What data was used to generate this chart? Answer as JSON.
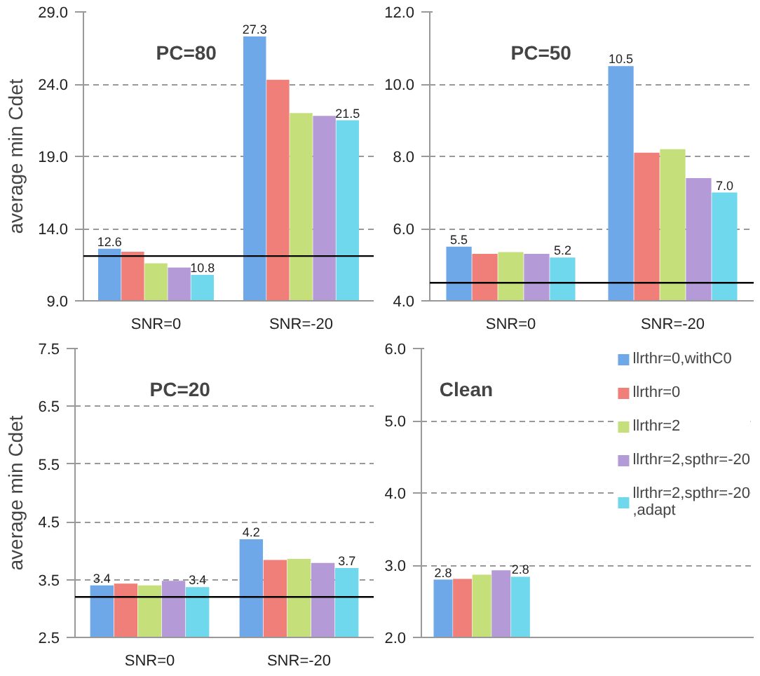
{
  "chart_data": [
    {
      "type": "bar",
      "title": "PC=80",
      "ylabel": "average min Cdet",
      "categories": [
        "SNR=0",
        "SNR=-20"
      ],
      "ylim": [
        9,
        29
      ],
      "yticks": [
        {
          "value": 9,
          "label": "9.0"
        },
        {
          "value": 14,
          "label": "14.0"
        },
        {
          "value": 19,
          "label": "19.0"
        },
        {
          "value": 24,
          "label": "24.0"
        },
        {
          "value": 29,
          "label": "29.0"
        }
      ],
      "grid": "y",
      "ref_lines": [
        {
          "axis": "y",
          "value": 12.1,
          "color": "#000000"
        }
      ],
      "series": [
        {
          "color": "#6fa8e8",
          "values": [
            12.6,
            27.3
          ],
          "value_labels": [
            "12.6",
            "27.3"
          ]
        },
        {
          "color": "#ef7f78",
          "values": [
            12.4,
            24.3
          ]
        },
        {
          "color": "#c5e07a",
          "values": [
            11.6,
            22.0
          ]
        },
        {
          "color": "#b59ad8",
          "values": [
            11.3,
            21.8
          ]
        },
        {
          "color": "#6fd8ec",
          "values": [
            10.8,
            21.5
          ],
          "value_labels": [
            "10.8",
            "21.5"
          ]
        }
      ]
    },
    {
      "type": "bar",
      "title": "PC=50",
      "categories": [
        "SNR=0",
        "SNR=-20"
      ],
      "ylim": [
        4,
        12
      ],
      "yticks": [
        {
          "value": 4,
          "label": "4.0"
        },
        {
          "value": 6,
          "label": "6.0"
        },
        {
          "value": 8,
          "label": "8.0"
        },
        {
          "value": 10,
          "label": "10.0"
        },
        {
          "value": 12,
          "label": "12.0"
        }
      ],
      "grid": "y",
      "ref_lines": [
        {
          "axis": "y",
          "value": 4.5,
          "color": "#000000"
        }
      ],
      "series": [
        {
          "color": "#6fa8e8",
          "values": [
            5.5,
            10.5
          ],
          "value_labels": [
            "5.5",
            "10.5"
          ]
        },
        {
          "color": "#ef7f78",
          "values": [
            5.3,
            8.1
          ]
        },
        {
          "color": "#c5e07a",
          "values": [
            5.35,
            8.2
          ]
        },
        {
          "color": "#b59ad8",
          "values": [
            5.3,
            7.4
          ]
        },
        {
          "color": "#6fd8ec",
          "values": [
            5.2,
            7.0
          ],
          "value_labels": [
            "5.2",
            "7.0"
          ]
        }
      ]
    },
    {
      "type": "bar",
      "title": "PC=20",
      "ylabel": "average min Cdet",
      "categories": [
        "SNR=0",
        "SNR=-20"
      ],
      "ylim": [
        2.5,
        7.5
      ],
      "yticks": [
        2.5,
        3.5,
        4.5,
        5.5,
        6.5,
        7.5
      ],
      "grid": "y",
      "ref_lines": [
        {
          "axis": "y",
          "value": 3.2,
          "color": "#000000"
        }
      ],
      "series": [
        {
          "color": "#6fa8e8",
          "values": [
            3.4,
            4.2
          ],
          "value_labels": [
            "3.4",
            "4.2"
          ]
        },
        {
          "color": "#ef7f78",
          "values": [
            3.43,
            3.84
          ]
        },
        {
          "color": "#c5e07a",
          "values": [
            3.4,
            3.86
          ]
        },
        {
          "color": "#b59ad8",
          "values": [
            3.48,
            3.79
          ]
        },
        {
          "color": "#6fd8ec",
          "values": [
            3.37,
            3.7
          ],
          "value_labels": [
            "3.4",
            "3.7"
          ]
        }
      ]
    },
    {
      "type": "bar",
      "title": "Clean",
      "categories": [
        null
      ],
      "ylim": [
        2,
        6
      ],
      "yticks": [
        {
          "value": 2,
          "label": "2.0"
        },
        {
          "value": 3,
          "label": "3.0"
        },
        {
          "value": 4,
          "label": "4.0"
        },
        {
          "value": 5,
          "label": "5.0"
        },
        {
          "value": 6,
          "label": "6.0"
        }
      ],
      "grid": "y",
      "legend": "right",
      "series": [
        {
          "name": "llrthr=0,withC0",
          "color": "#6fa8e8",
          "values": [
            2.8
          ],
          "value_labels": [
            "2.8"
          ]
        },
        {
          "name": "llrthr=0",
          "color": "#ef7f78",
          "values": [
            2.81
          ]
        },
        {
          "name": "llrthr=2",
          "color": "#c5e07a",
          "values": [
            2.87
          ]
        },
        {
          "name": "llrthr=2,spthr=-20",
          "color": "#b59ad8",
          "values": [
            2.93
          ]
        },
        {
          "name": "llrthr=2,spthr=-20\n,adapt",
          "color": "#6fd8ec",
          "values": [
            2.84
          ],
          "value_labels": [
            "2.8"
          ]
        }
      ]
    }
  ]
}
